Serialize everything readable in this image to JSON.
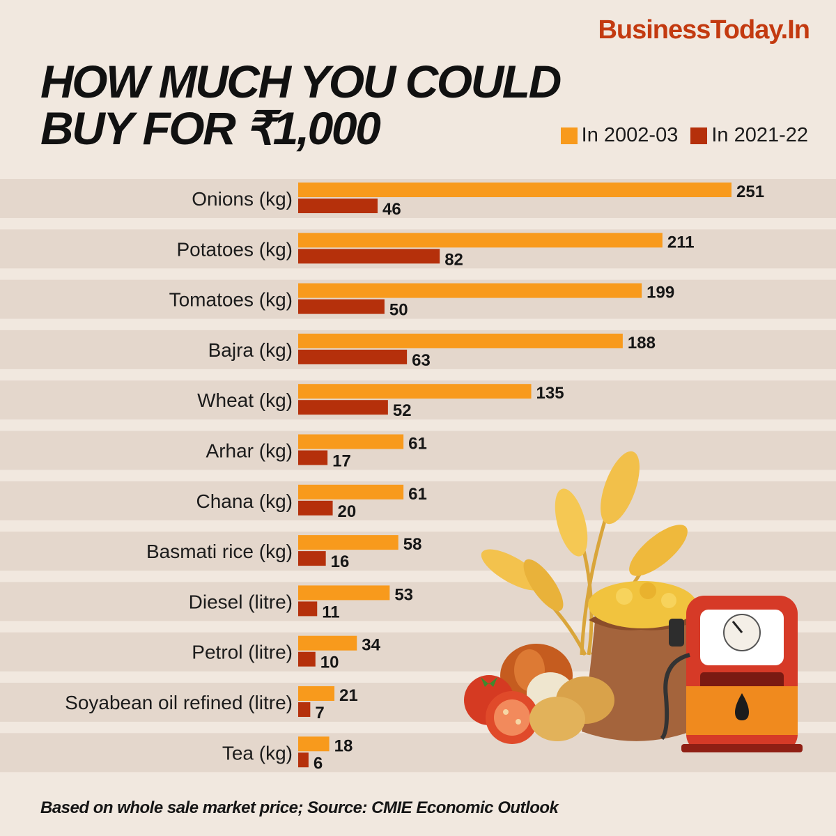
{
  "brand": "BusinessToday.In",
  "title": {
    "line1": "HOW MUCH YOU COULD",
    "line2": "BUY FOR ₹1,000"
  },
  "legend": [
    {
      "label": "In 2002-03",
      "color": "#f89a1c"
    },
    {
      "label": "In 2021-22",
      "color": "#b5300b"
    }
  ],
  "chart_data": {
    "type": "bar",
    "orientation": "horizontal",
    "categories": [
      "Onions (kg)",
      "Potatoes (kg)",
      "Tomatoes (kg)",
      "Bajra (kg)",
      "Wheat (kg)",
      "Arhar (kg)",
      "Chana (kg)",
      "Basmati rice (kg)",
      "Diesel (litre)",
      "Petrol (litre)",
      "Soyabean oil refined (litre)",
      "Tea (kg)"
    ],
    "series": [
      {
        "name": "In 2002-03",
        "color": "#f89a1c",
        "values": [
          251,
          211,
          199,
          188,
          135,
          61,
          61,
          58,
          53,
          34,
          21,
          18
        ]
      },
      {
        "name": "In 2021-22",
        "color": "#b5300b",
        "values": [
          46,
          82,
          50,
          63,
          52,
          17,
          20,
          16,
          11,
          10,
          7,
          6
        ]
      }
    ],
    "xlim": [
      0,
      251
    ],
    "grid": false,
    "legend_position": "top-right",
    "row_bands": true
  },
  "colors": {
    "background": "#f1e8df",
    "band": "#e4d7cc",
    "brand": "#c33a10"
  },
  "illustration": "wheat sack, onion, tomatoes, potatoes and fuel pump",
  "footnote": "Based on whole sale market price;  Source: CMIE Economic Outlook"
}
